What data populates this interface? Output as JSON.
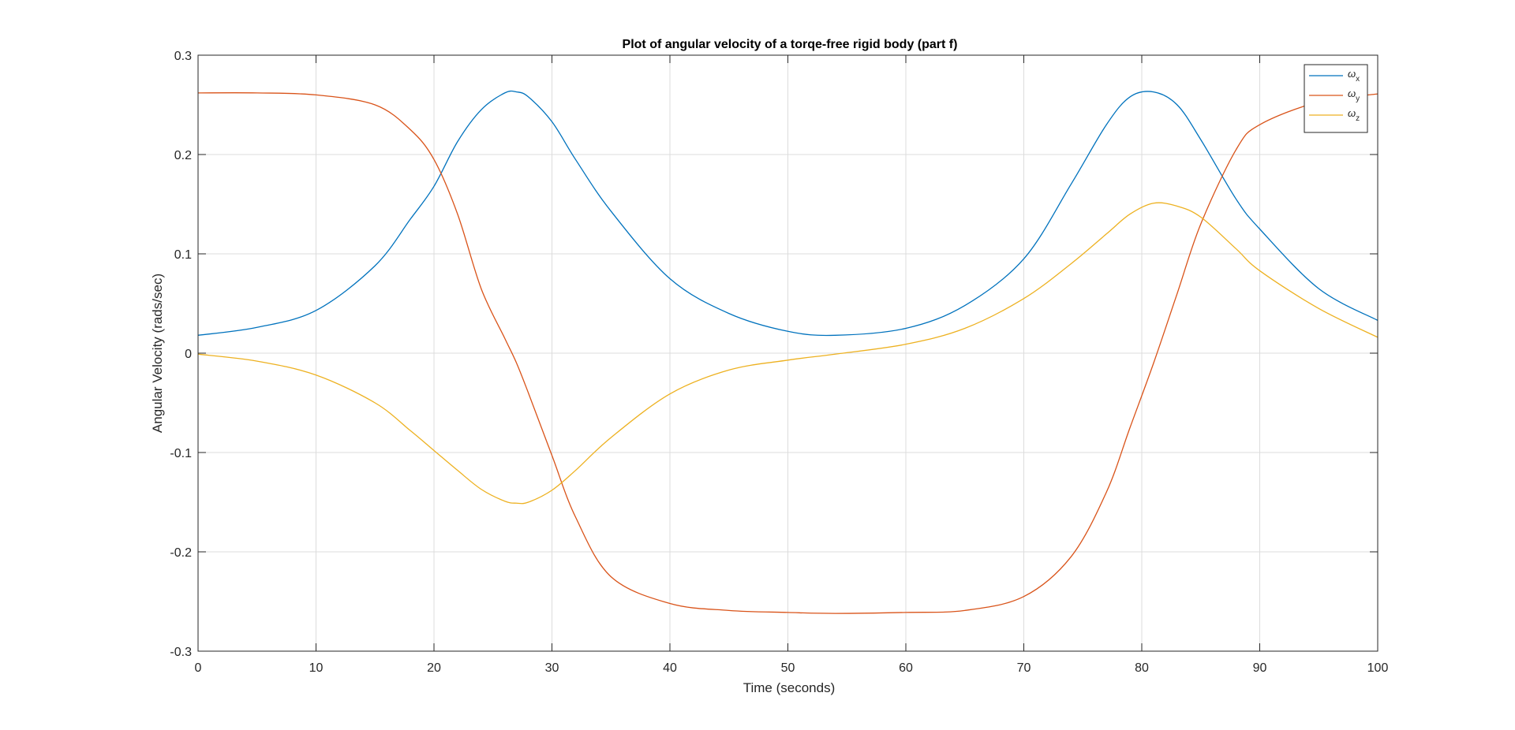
{
  "chart_data": {
    "type": "line",
    "title": "Plot of angular velocity of a torqe-free rigid body (part f)",
    "xlabel": "Time (seconds)",
    "ylabel": "Angular Velocity (rads/sec)",
    "xlim": [
      0,
      100
    ],
    "ylim": [
      -0.3,
      0.3
    ],
    "xticks": [
      0,
      10,
      20,
      30,
      40,
      50,
      60,
      70,
      80,
      90,
      100
    ],
    "yticks": [
      -0.3,
      -0.2,
      -0.1,
      0,
      0.1,
      0.2,
      0.3
    ],
    "xtick_labels": [
      "0",
      "10",
      "20",
      "30",
      "40",
      "50",
      "60",
      "70",
      "80",
      "90",
      "100"
    ],
    "ytick_labels": [
      "-0.3",
      "-0.2",
      "-0.1",
      "0",
      "0.1",
      "0.2",
      "0.3"
    ],
    "grid": true,
    "legend_position": "top-right",
    "x": [
      0,
      5,
      10,
      15,
      18,
      20,
      22,
      24,
      26,
      27,
      28,
      30,
      32,
      35,
      40,
      45,
      50,
      54,
      60,
      65,
      70,
      74,
      77,
      79,
      81,
      83,
      85,
      88,
      90,
      95,
      100
    ],
    "series": [
      {
        "name": "ω",
        "subscript": "x",
        "color": "#0072BD",
        "values": [
          0.018,
          0.026,
          0.043,
          0.088,
          0.135,
          0.168,
          0.213,
          0.245,
          0.262,
          0.263,
          0.258,
          0.233,
          0.195,
          0.143,
          0.075,
          0.04,
          0.022,
          0.018,
          0.025,
          0.048,
          0.095,
          0.17,
          0.23,
          0.258,
          0.263,
          0.25,
          0.215,
          0.155,
          0.125,
          0.065,
          0.033
        ]
      },
      {
        "name": "ω",
        "subscript": "y",
        "color": "#D95319",
        "values": [
          0.262,
          0.262,
          0.26,
          0.25,
          0.225,
          0.195,
          0.14,
          0.065,
          0.015,
          -0.01,
          -0.04,
          -0.103,
          -0.165,
          -0.225,
          -0.252,
          -0.259,
          -0.261,
          -0.262,
          -0.261,
          -0.259,
          -0.245,
          -0.205,
          -0.14,
          -0.075,
          -0.01,
          0.06,
          0.13,
          0.205,
          0.23,
          0.253,
          0.261
        ]
      },
      {
        "name": "ω",
        "subscript": "z",
        "color": "#EDB120",
        "values": [
          -0.001,
          -0.008,
          -0.022,
          -0.05,
          -0.078,
          -0.098,
          -0.118,
          -0.137,
          -0.149,
          -0.151,
          -0.15,
          -0.138,
          -0.118,
          -0.085,
          -0.041,
          -0.017,
          -0.007,
          -0.001,
          0.009,
          0.025,
          0.055,
          0.09,
          0.12,
          0.14,
          0.151,
          0.148,
          0.137,
          0.105,
          0.083,
          0.045,
          0.016
        ]
      }
    ]
  }
}
